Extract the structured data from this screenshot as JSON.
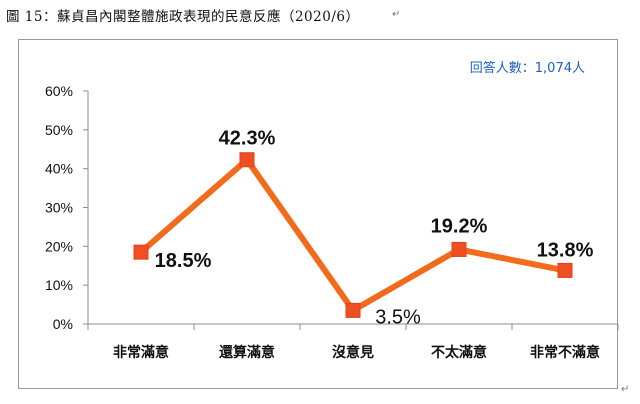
{
  "document": {
    "caption": "圖 15：蘇貞昌內閣整體施政表現的民意反應（2020/6）",
    "para_mark": "↵"
  },
  "chart_data": {
    "type": "line",
    "categories": [
      "非常滿意",
      "還算滿意",
      "沒意見",
      "不太滿意",
      "非常不滿意"
    ],
    "series": [
      {
        "values": [
          18.5,
          42.3,
          3.5,
          19.2,
          13.8
        ]
      }
    ],
    "data_labels": [
      "18.5%",
      "42.3%",
      "3.5%",
      "19.2%",
      "13.8%"
    ],
    "ylim": [
      0,
      60
    ],
    "yticks": [
      0,
      10,
      20,
      30,
      40,
      50,
      60
    ],
    "ytick_labels": [
      "0%",
      "10%",
      "20%",
      "30%",
      "40%",
      "50%",
      "60%"
    ],
    "grid": false,
    "note": "回答人數：1,074人",
    "colors": {
      "line": "#f26b1d",
      "marker": "#f04e23",
      "note": "#1f5fbf",
      "axis": "#8c8c8c"
    }
  }
}
